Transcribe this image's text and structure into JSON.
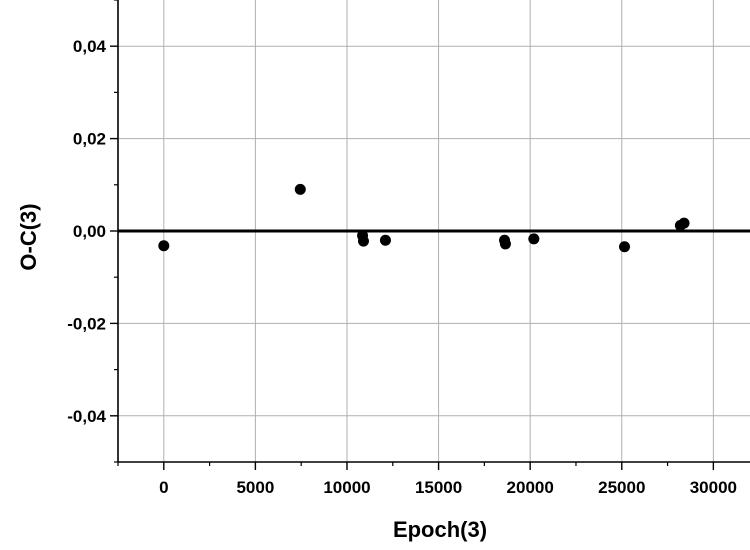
{
  "chart_data": {
    "type": "scatter",
    "xlabel": "Epoch(3)",
    "ylabel": "O-C(3)",
    "xlim": [
      -2500,
      32000
    ],
    "ylim": [
      -0.05,
      0.05
    ],
    "x_ticks": [
      0,
      5000,
      10000,
      15000,
      20000,
      25000,
      30000
    ],
    "x_tick_labels": [
      "0",
      "5000",
      "10000",
      "15000",
      "20000",
      "25000",
      "30000"
    ],
    "y_ticks": [
      -0.04,
      -0.02,
      0.0,
      0.02,
      0.04
    ],
    "y_tick_labels": [
      "-0,04",
      "-0,02",
      "0,00",
      "0,02",
      "0,04"
    ],
    "grid": true,
    "reference_line_y": 0.0,
    "series": [
      {
        "points": [
          {
            "x": 0,
            "y": -0.0032
          },
          {
            "x": 7450,
            "y": 0.009
          },
          {
            "x": 10850,
            "y": -0.001
          },
          {
            "x": 10900,
            "y": -0.0022
          },
          {
            "x": 12100,
            "y": -0.002
          },
          {
            "x": 18600,
            "y": -0.002
          },
          {
            "x": 18650,
            "y": -0.0028
          },
          {
            "x": 20200,
            "y": -0.0017
          },
          {
            "x": 25150,
            "y": -0.0034
          },
          {
            "x": 28200,
            "y": 0.0012
          },
          {
            "x": 28400,
            "y": 0.0017
          }
        ]
      }
    ],
    "colors": {
      "marker": "#000000",
      "grid": "#b0b0b0",
      "axis": "#000000",
      "zero_line": "#000000"
    }
  }
}
